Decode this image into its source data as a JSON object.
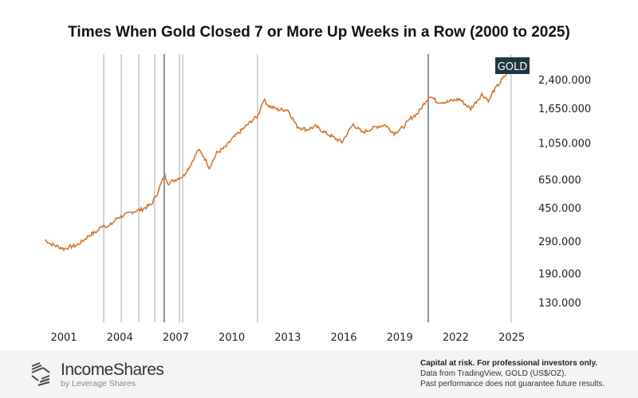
{
  "chart_data": {
    "type": "line",
    "title": "Times When Gold Closed 7 or More Up Weeks in a Row (2000 to 2025)",
    "y_scale": "log",
    "ylim": [
      110,
      2750
    ],
    "xlim": [
      2000.0,
      2025.6
    ],
    "x_ticks": [
      2001,
      2004,
      2007,
      2010,
      2013,
      2016,
      2019,
      2022,
      2025
    ],
    "y_ticks": [
      130,
      190,
      290,
      450,
      650,
      1050,
      1650,
      2400
    ],
    "y_tick_labels": [
      "130.000",
      "190.000",
      "290.000",
      "450.000",
      "650.000",
      "1,050.000",
      "1,650.000",
      "2,400.000"
    ],
    "series_label": "GOLD",
    "label_color": "#1f3642",
    "line_color": "#e07b2e",
    "grid": false,
    "x": [
      2000.0,
      2000.3,
      2000.7,
      2001.0,
      2001.3,
      2001.7,
      2002.0,
      2002.4,
      2002.8,
      2003.1,
      2003.4,
      2003.9,
      2004.3,
      2004.8,
      2005.2,
      2005.7,
      2006.0,
      2006.4,
      2006.6,
      2007.0,
      2007.4,
      2007.8,
      2008.2,
      2008.5,
      2008.8,
      2009.2,
      2009.7,
      2010.0,
      2010.5,
      2011.0,
      2011.4,
      2011.7,
      2012.0,
      2012.5,
      2013.0,
      2013.5,
      2014.0,
      2014.5,
      2015.0,
      2015.9,
      2016.5,
      2017.0,
      2017.7,
      2018.2,
      2018.7,
      2019.2,
      2019.6,
      2020.0,
      2020.6,
      2021.0,
      2021.5,
      2022.2,
      2022.8,
      2023.4,
      2023.8,
      2024.0,
      2024.4,
      2024.8,
      2025.1
    ],
    "values": [
      295,
      280,
      270,
      262,
      268,
      275,
      290,
      315,
      330,
      360,
      350,
      395,
      410,
      430,
      440,
      470,
      540,
      690,
      620,
      650,
      680,
      790,
      960,
      880,
      760,
      920,
      1000,
      1100,
      1230,
      1380,
      1500,
      1850,
      1700,
      1620,
      1620,
      1300,
      1250,
      1300,
      1200,
      1060,
      1340,
      1200,
      1290,
      1330,
      1190,
      1290,
      1450,
      1560,
      1950,
      1800,
      1790,
      1860,
      1640,
      1980,
      1820,
      2050,
      2330,
      2650,
      2690
    ],
    "event_markers": [
      2003.14,
      2004.08,
      2005.02,
      2005.87,
      2006.38,
      2007.2,
      2007.37,
      2011.38,
      2020.53,
      2024.97
    ]
  },
  "footer": {
    "brand": "IncomeShares",
    "brand_sub": "by Leverage Shares",
    "line1": "Capital at risk. For professional investors only.",
    "line2": "Data from TradingView, GOLD (US$/OZ).",
    "line3": "Past performance does not guarantee future results."
  }
}
